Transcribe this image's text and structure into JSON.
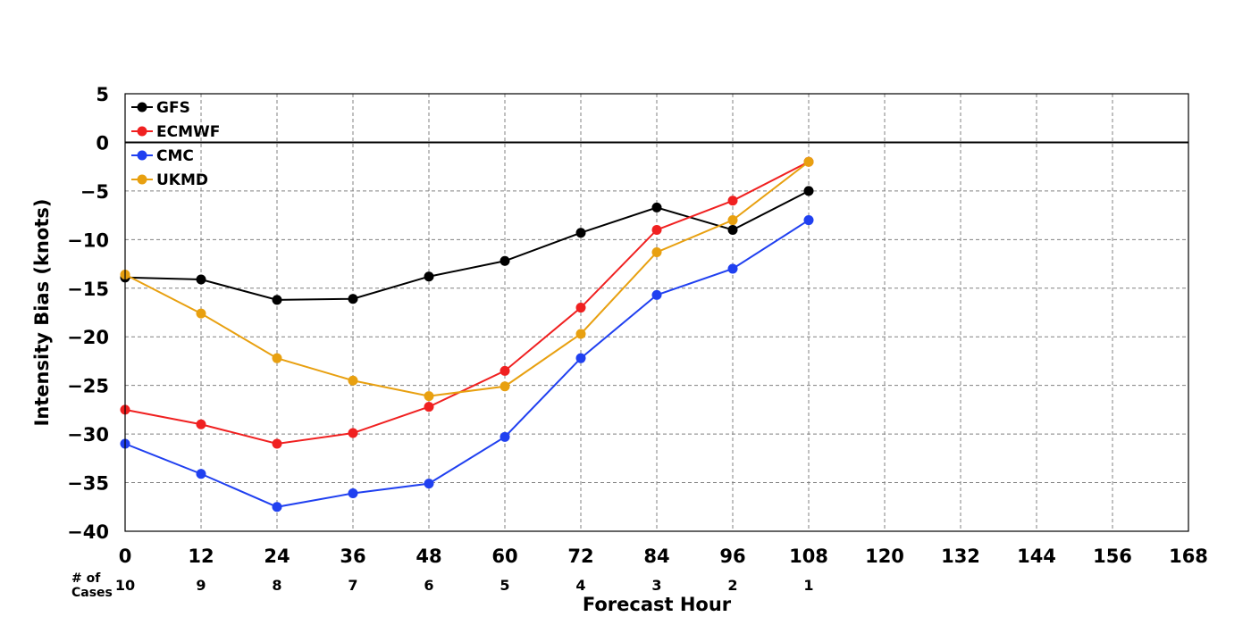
{
  "chart_data": {
    "type": "line",
    "xlabel": "Forecast Hour",
    "ylabel": "Intensity Bias (knots)",
    "xlim": [
      0,
      168
    ],
    "ylim": [
      -40,
      5
    ],
    "xticks": [
      0,
      12,
      24,
      36,
      48,
      60,
      72,
      84,
      96,
      108,
      120,
      132,
      144,
      156,
      168
    ],
    "yticks": [
      5,
      0,
      -5,
      -10,
      -15,
      -20,
      -25,
      -30,
      -35,
      -40
    ],
    "grid": true,
    "zero_line": true,
    "legend": "top-left",
    "x": [
      0,
      12,
      24,
      36,
      48,
      60,
      72,
      84,
      96,
      108
    ],
    "series": [
      {
        "name": "GFS",
        "color": "#000000",
        "values": [
          -13.9,
          -14.1,
          -16.2,
          -16.1,
          -13.8,
          -12.2,
          -9.3,
          -6.7,
          -9.0,
          -5.0
        ]
      },
      {
        "name": "ECMWF",
        "color": "#f02020",
        "values": [
          -27.5,
          -29.0,
          -31.0,
          -29.9,
          -27.2,
          -23.5,
          -17.0,
          -9.0,
          -6.0,
          -2.0
        ]
      },
      {
        "name": "CMC",
        "color": "#2040f0",
        "values": [
          -31.0,
          -34.1,
          -37.5,
          -36.1,
          -35.1,
          -30.3,
          -22.2,
          -15.7,
          -13.0,
          -8.0
        ]
      },
      {
        "name": "UKMD",
        "color": "#e8a010",
        "values": [
          -13.6,
          -17.6,
          -22.2,
          -24.5,
          -26.1,
          -25.1,
          -19.7,
          -11.3,
          -8.0,
          -2.0
        ]
      }
    ],
    "cases": {
      "title_line1": "# of",
      "title_line2": "Cases",
      "values": [
        "10",
        "9",
        "8",
        "7",
        "6",
        "5",
        "4",
        "3",
        "2",
        "1"
      ]
    }
  }
}
